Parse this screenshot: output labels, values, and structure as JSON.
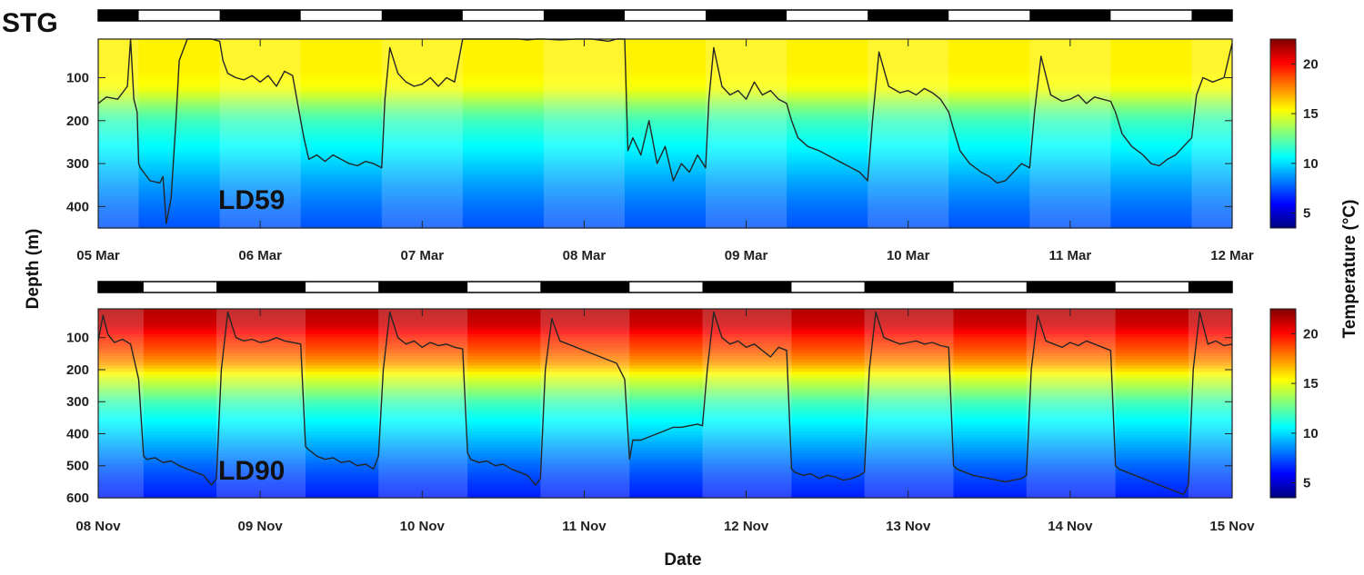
{
  "figure": {
    "site_label": "STG",
    "ylabel": "Depth (m)",
    "xlabel": "Date",
    "colorbar_label": "Temperature (°C)"
  },
  "colors": {
    "night_bar": "#000000",
    "day_bar": "#ffffff",
    "trace": "#262626",
    "colormap": [
      "#00007f",
      "#0000ff",
      "#007fff",
      "#00ffff",
      "#7fff7f",
      "#ffff00",
      "#ff7f00",
      "#ff0000",
      "#7f0000"
    ]
  },
  "chart_data": [
    {
      "type": "heatmap",
      "panel_label": "LD59",
      "xlabel": "",
      "ylabel": "Depth (m)",
      "x_start_day": 5,
      "x_range_days": [
        0,
        7
      ],
      "x_ticks": [
        "05 Mar",
        "06 Mar",
        "07 Mar",
        "08 Mar",
        "09 Mar",
        "10 Mar",
        "11 Mar",
        "12 Mar"
      ],
      "ylim": [
        10,
        450
      ],
      "y_ticks": [
        100,
        200,
        300,
        400
      ],
      "y_reversed": true,
      "colorbar": {
        "range": [
          3.5,
          22.5
        ],
        "ticks": [
          5,
          10,
          15,
          20
        ],
        "label": "Temperature (°C)"
      },
      "temperature_profile": {
        "depth": [
          10,
          80,
          110,
          130,
          150,
          175,
          200,
          250,
          300,
          350,
          400,
          450
        ],
        "temp": [
          15.6,
          15.6,
          15.4,
          15.0,
          14.0,
          12.8,
          11.8,
          10.8,
          9.8,
          8.8,
          8.0,
          7.4
        ]
      },
      "night_intervals": [
        [
          0,
          0.25
        ],
        [
          0.75,
          1.25
        ],
        [
          1.75,
          2.25
        ],
        [
          2.75,
          3.25
        ],
        [
          3.75,
          4.25
        ],
        [
          4.75,
          5.25
        ],
        [
          5.75,
          6.25
        ],
        [
          6.75,
          7
        ]
      ],
      "depth_trace": {
        "x": [
          0.0,
          0.05,
          0.12,
          0.18,
          0.2,
          0.22,
          0.24,
          0.25,
          0.26,
          0.28,
          0.32,
          0.38,
          0.4,
          0.42,
          0.45,
          0.48,
          0.5,
          0.55,
          0.6,
          0.65,
          0.7,
          0.75,
          0.77,
          0.8,
          0.85,
          0.9,
          0.95,
          1.0,
          1.05,
          1.1,
          1.15,
          1.2,
          1.25,
          1.27,
          1.3,
          1.35,
          1.4,
          1.45,
          1.5,
          1.55,
          1.6,
          1.65,
          1.7,
          1.75,
          1.77,
          1.8,
          1.85,
          1.9,
          1.95,
          2.0,
          2.05,
          2.1,
          2.15,
          2.2,
          2.25,
          2.26,
          2.3,
          2.4,
          2.5,
          2.6,
          2.65,
          2.7,
          2.75,
          2.85,
          2.95,
          3.05,
          3.15,
          3.2,
          3.25,
          3.27,
          3.3,
          3.35,
          3.4,
          3.45,
          3.5,
          3.55,
          3.6,
          3.65,
          3.7,
          3.75,
          3.77,
          3.8,
          3.85,
          3.9,
          3.95,
          4.0,
          4.05,
          4.1,
          4.15,
          4.2,
          4.25,
          4.28,
          4.32,
          4.38,
          4.45,
          4.5,
          4.55,
          4.6,
          4.65,
          4.7,
          4.75,
          4.78,
          4.82,
          4.88,
          4.95,
          5.0,
          5.05,
          5.1,
          5.15,
          5.2,
          5.25,
          5.28,
          5.32,
          5.38,
          5.45,
          5.5,
          5.55,
          5.6,
          5.65,
          5.7,
          5.75,
          5.78,
          5.82,
          5.88,
          5.95,
          6.0,
          6.05,
          6.1,
          6.15,
          6.2,
          6.25,
          6.28,
          6.32,
          6.38,
          6.45,
          6.5,
          6.55,
          6.6,
          6.65,
          6.7,
          6.75,
          6.78,
          6.82,
          6.88,
          6.95,
          7.0
        ],
        "depth": [
          160,
          145,
          150,
          120,
          10,
          150,
          180,
          300,
          310,
          320,
          340,
          345,
          330,
          440,
          380,
          200,
          60,
          10,
          10,
          10,
          10,
          15,
          60,
          90,
          100,
          105,
          95,
          110,
          95,
          120,
          85,
          95,
          200,
          240,
          290,
          280,
          295,
          280,
          290,
          300,
          305,
          295,
          300,
          310,
          150,
          30,
          90,
          110,
          120,
          115,
          100,
          120,
          100,
          110,
          10,
          10,
          10,
          10,
          10,
          10,
          12,
          10,
          10,
          12,
          10,
          10,
          15,
          10,
          10,
          270,
          240,
          280,
          200,
          300,
          260,
          340,
          300,
          320,
          280,
          310,
          150,
          30,
          120,
          140,
          130,
          150,
          110,
          140,
          130,
          150,
          160,
          200,
          240,
          260,
          270,
          280,
          290,
          300,
          310,
          320,
          340,
          200,
          40,
          120,
          135,
          130,
          140,
          125,
          135,
          150,
          180,
          220,
          270,
          300,
          320,
          330,
          345,
          340,
          320,
          300,
          310,
          180,
          50,
          140,
          155,
          150,
          140,
          160,
          145,
          150,
          155,
          180,
          230,
          260,
          280,
          300,
          305,
          290,
          280,
          260,
          240,
          140,
          100,
          110,
          100,
          20
        ]
      }
    },
    {
      "type": "heatmap",
      "panel_label": "LD90",
      "xlabel": "Date",
      "ylabel": "Depth (m)",
      "x_start_day": 8,
      "x_range_days": [
        0,
        7
      ],
      "x_ticks": [
        "08 Nov",
        "09 Nov",
        "10 Nov",
        "11 Nov",
        "12 Nov",
        "13 Nov",
        "14 Nov",
        "15 Nov"
      ],
      "ylim": [
        10,
        600
      ],
      "y_ticks": [
        100,
        200,
        300,
        400,
        500,
        600
      ],
      "y_reversed": true,
      "colorbar": {
        "range": [
          3.5,
          22.5
        ],
        "ticks": [
          5,
          10,
          15,
          20
        ],
        "label": "Temperature (°C)"
      },
      "temperature_profile": {
        "depth": [
          10,
          60,
          100,
          140,
          180,
          220,
          260,
          300,
          350,
          400,
          450,
          500,
          550,
          600
        ],
        "temp": [
          21.5,
          21.0,
          19.5,
          18.5,
          17.2,
          15.0,
          13.5,
          12.0,
          10.8,
          9.8,
          8.8,
          7.8,
          7.0,
          6.4
        ]
      },
      "night_intervals": [
        [
          0,
          0.28
        ],
        [
          0.73,
          1.28
        ],
        [
          1.73,
          2.28
        ],
        [
          2.73,
          3.28
        ],
        [
          3.73,
          4.28
        ],
        [
          4.73,
          5.28
        ],
        [
          5.73,
          6.28
        ],
        [
          6.73,
          7
        ]
      ],
      "depth_trace": {
        "x": [
          0.0,
          0.03,
          0.06,
          0.1,
          0.15,
          0.2,
          0.25,
          0.28,
          0.3,
          0.35,
          0.4,
          0.45,
          0.5,
          0.55,
          0.6,
          0.65,
          0.7,
          0.73,
          0.76,
          0.8,
          0.85,
          0.9,
          0.95,
          1.0,
          1.05,
          1.1,
          1.15,
          1.2,
          1.25,
          1.28,
          1.3,
          1.35,
          1.4,
          1.45,
          1.5,
          1.55,
          1.6,
          1.65,
          1.7,
          1.73,
          1.76,
          1.8,
          1.85,
          1.9,
          1.95,
          2.0,
          2.05,
          2.1,
          2.15,
          2.2,
          2.25,
          2.28,
          2.3,
          2.35,
          2.4,
          2.45,
          2.5,
          2.55,
          2.6,
          2.65,
          2.7,
          2.73,
          2.76,
          2.8,
          2.85,
          2.9,
          2.95,
          3.0,
          3.05,
          3.1,
          3.15,
          3.2,
          3.25,
          3.28,
          3.3,
          3.35,
          3.4,
          3.45,
          3.5,
          3.55,
          3.6,
          3.65,
          3.7,
          3.73,
          3.76,
          3.8,
          3.85,
          3.9,
          3.95,
          4.0,
          4.05,
          4.1,
          4.15,
          4.2,
          4.25,
          4.28,
          4.3,
          4.35,
          4.4,
          4.45,
          4.5,
          4.55,
          4.6,
          4.65,
          4.7,
          4.73,
          4.76,
          4.8,
          4.85,
          4.9,
          4.95,
          5.0,
          5.05,
          5.1,
          5.15,
          5.2,
          5.25,
          5.28,
          5.3,
          5.35,
          5.4,
          5.45,
          5.5,
          5.55,
          5.6,
          5.65,
          5.7,
          5.73,
          5.76,
          5.8,
          5.85,
          5.9,
          5.95,
          6.0,
          6.05,
          6.1,
          6.15,
          6.2,
          6.25,
          6.28,
          6.3,
          6.35,
          6.4,
          6.45,
          6.5,
          6.55,
          6.6,
          6.65,
          6.7,
          6.73,
          6.76,
          6.8,
          6.85,
          6.9,
          6.95,
          7.0
        ],
        "depth": [
          110,
          30,
          90,
          115,
          105,
          120,
          230,
          470,
          480,
          475,
          490,
          485,
          500,
          510,
          520,
          530,
          560,
          540,
          200,
          20,
          100,
          110,
          105,
          115,
          110,
          100,
          110,
          115,
          120,
          440,
          450,
          470,
          480,
          475,
          490,
          485,
          500,
          495,
          510,
          470,
          200,
          20,
          100,
          120,
          110,
          130,
          115,
          125,
          120,
          130,
          135,
          460,
          480,
          490,
          485,
          500,
          495,
          510,
          520,
          530,
          560,
          540,
          200,
          40,
          110,
          120,
          130,
          140,
          150,
          160,
          170,
          180,
          230,
          480,
          420,
          420,
          410,
          400,
          390,
          380,
          380,
          375,
          370,
          375,
          200,
          20,
          100,
          120,
          110,
          130,
          120,
          140,
          160,
          130,
          140,
          510,
          520,
          530,
          525,
          540,
          530,
          535,
          545,
          540,
          530,
          520,
          200,
          20,
          100,
          110,
          120,
          115,
          110,
          120,
          115,
          125,
          130,
          500,
          510,
          520,
          530,
          535,
          540,
          545,
          550,
          545,
          540,
          530,
          200,
          30,
          110,
          120,
          130,
          115,
          125,
          110,
          120,
          130,
          140,
          500,
          510,
          520,
          530,
          540,
          550,
          560,
          570,
          580,
          590,
          560,
          200,
          20,
          120,
          110,
          125,
          120
        ]
      }
    }
  ]
}
